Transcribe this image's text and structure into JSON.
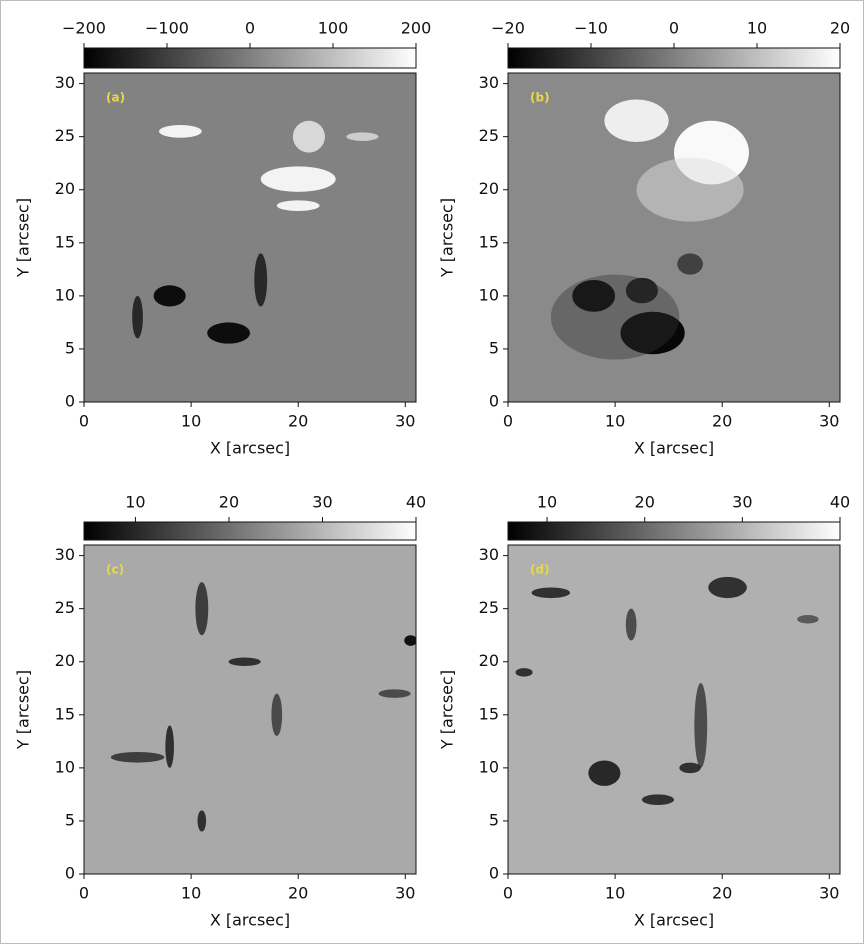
{
  "chart_data": [
    {
      "type": "image",
      "panel_label": "(a)",
      "xlabel": "X [arcsec]",
      "ylabel": "Y [arcsec]",
      "xlim": [
        0,
        31
      ],
      "ylim": [
        0,
        31
      ],
      "xticks": [
        0,
        10,
        20,
        30
      ],
      "yticks": [
        0,
        5,
        10,
        15,
        20,
        25,
        30
      ],
      "colorbar": {
        "lim": [
          -200,
          200
        ],
        "ticks": [
          {
            "value": -200,
            "label": "−200"
          },
          {
            "value": -100,
            "label": "−100"
          },
          0,
          100,
          200
        ],
        "colors": [
          "#000000",
          "#ffffff"
        ]
      }
    },
    {
      "type": "image",
      "panel_label": "(b)",
      "xlabel": "X [arcsec]",
      "ylabel": "Y [arcsec]",
      "xlim": [
        0,
        31
      ],
      "ylim": [
        0,
        31
      ],
      "xticks": [
        0,
        10,
        20,
        30
      ],
      "yticks": [
        0,
        5,
        10,
        15,
        20,
        25,
        30
      ],
      "colorbar": {
        "lim": [
          -20,
          20
        ],
        "ticks": [
          {
            "value": -20,
            "label": "−20"
          },
          {
            "value": -10,
            "label": "−10"
          },
          0,
          10,
          20
        ],
        "colors": [
          "#000000",
          "#ffffff"
        ]
      }
    },
    {
      "type": "image",
      "panel_label": "(c)",
      "xlabel": "X [arcsec]",
      "ylabel": "Y [arcsec]",
      "xlim": [
        0,
        31
      ],
      "ylim": [
        0,
        31
      ],
      "xticks": [
        0,
        10,
        20,
        30
      ],
      "yticks": [
        0,
        5,
        10,
        15,
        20,
        25,
        30
      ],
      "colorbar": {
        "lim": [
          4.5,
          40
        ],
        "ticks": [
          10,
          20,
          30,
          40
        ],
        "colors": [
          "#000000",
          "#ffffff"
        ]
      }
    },
    {
      "type": "image",
      "panel_label": "(d)",
      "xlabel": "X [arcsec]",
      "ylabel": "Y [arcsec]",
      "xlim": [
        0,
        31
      ],
      "ylim": [
        0,
        31
      ],
      "xticks": [
        0,
        10,
        20,
        30
      ],
      "yticks": [
        0,
        5,
        10,
        15,
        20,
        25,
        30
      ],
      "colorbar": {
        "lim": [
          6,
          40
        ],
        "ticks": [
          10,
          20,
          30,
          40
        ],
        "colors": [
          "#000000",
          "#ffffff"
        ]
      }
    }
  ]
}
